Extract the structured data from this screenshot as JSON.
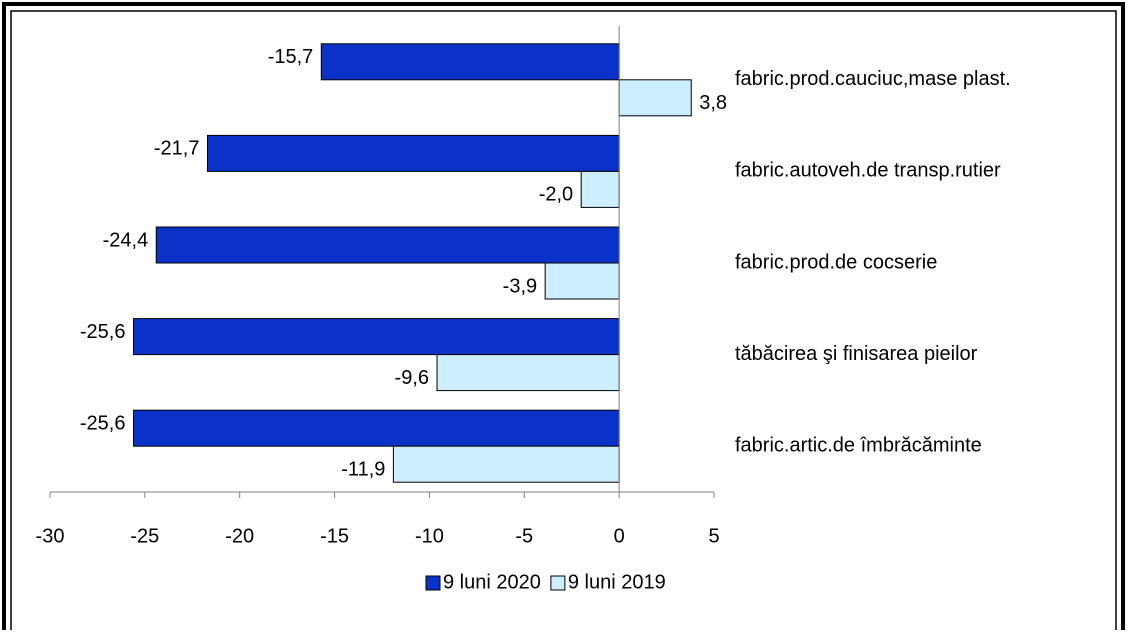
{
  "chart_data": {
    "type": "hbar",
    "categories": [
      "fabric.prod.cauciuc,mase plast.",
      "fabric.autoveh.de transp.rutier",
      "fabric.prod.de cocserie",
      "tăbăcirea şi finisarea pieilor",
      "fabric.artic.de îmbrăcăminte"
    ],
    "series": [
      {
        "name": "9 luni 2020",
        "color": "#0a32c8",
        "values": [
          -15.7,
          -21.7,
          -24.4,
          -25.6,
          -25.6
        ],
        "value_labels": [
          "-15,7",
          "-21,7",
          "-24,4",
          "-25,6",
          "-25,6"
        ]
      },
      {
        "name": "9 luni 2019",
        "color": "#cceeff",
        "values": [
          3.8,
          -2.0,
          -3.9,
          -9.6,
          -11.9
        ],
        "value_labels": [
          "3,8",
          "-2,0",
          "-3,9",
          "-9,6",
          "-11,9"
        ]
      }
    ],
    "xlim": [
      -30,
      5
    ],
    "xticks": [
      -30,
      -25,
      -20,
      -15,
      -10,
      -5,
      0,
      5
    ],
    "legend": "bottom"
  }
}
